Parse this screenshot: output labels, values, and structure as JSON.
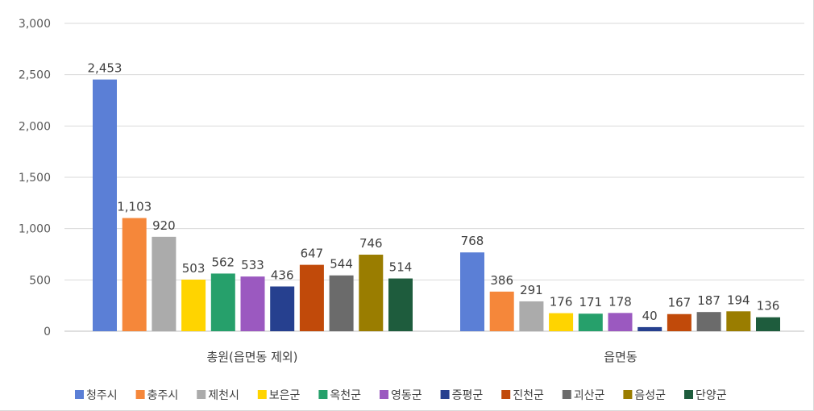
{
  "chart_data": {
    "type": "bar",
    "categories": [
      "총원(읍면동 제외)",
      "읍면동"
    ],
    "series": [
      {
        "name": "청주시",
        "color": "#5b7fd6",
        "values": [
          2453,
          768
        ],
        "labels": [
          "2,453",
          "768"
        ]
      },
      {
        "name": "충주시",
        "color": "#f5873a",
        "values": [
          1103,
          386
        ],
        "labels": [
          "1,103",
          "386"
        ]
      },
      {
        "name": "제천시",
        "color": "#ababab",
        "values": [
          920,
          291
        ],
        "labels": [
          "920",
          "291"
        ]
      },
      {
        "name": "보은군",
        "color": "#ffd400",
        "values": [
          503,
          176
        ],
        "labels": [
          "503",
          "176"
        ]
      },
      {
        "name": "옥천군",
        "color": "#26a06b",
        "values": [
          562,
          171
        ],
        "labels": [
          "562",
          "171"
        ]
      },
      {
        "name": "영동군",
        "color": "#9b59c0",
        "values": [
          533,
          178
        ],
        "labels": [
          "533",
          "178"
        ]
      },
      {
        "name": "증평군",
        "color": "#26408f",
        "values": [
          436,
          40
        ],
        "labels": [
          "436",
          "40"
        ]
      },
      {
        "name": "진천군",
        "color": "#c14a0a",
        "values": [
          647,
          167
        ],
        "labels": [
          "647",
          "167"
        ]
      },
      {
        "name": "괴산군",
        "color": "#6b6b6b",
        "values": [
          544,
          187
        ],
        "labels": [
          "544",
          "187"
        ]
      },
      {
        "name": "음성군",
        "color": "#9a7d00",
        "values": [
          746,
          194
        ],
        "labels": [
          "746",
          "194"
        ]
      },
      {
        "name": "단양군",
        "color": "#1e5c3d",
        "values": [
          514,
          136
        ],
        "labels": [
          "514",
          "136"
        ]
      }
    ],
    "ylim": [
      0,
      3000
    ],
    "yticks": [
      0,
      500,
      1000,
      1500,
      2000,
      2500,
      3000
    ],
    "ytick_labels": [
      "0",
      "500",
      "1,000",
      "1,500",
      "2,000",
      "2,500",
      "3,000"
    ],
    "grid": true,
    "legend_position": "bottom",
    "title": "",
    "xlabel": "",
    "ylabel": ""
  }
}
